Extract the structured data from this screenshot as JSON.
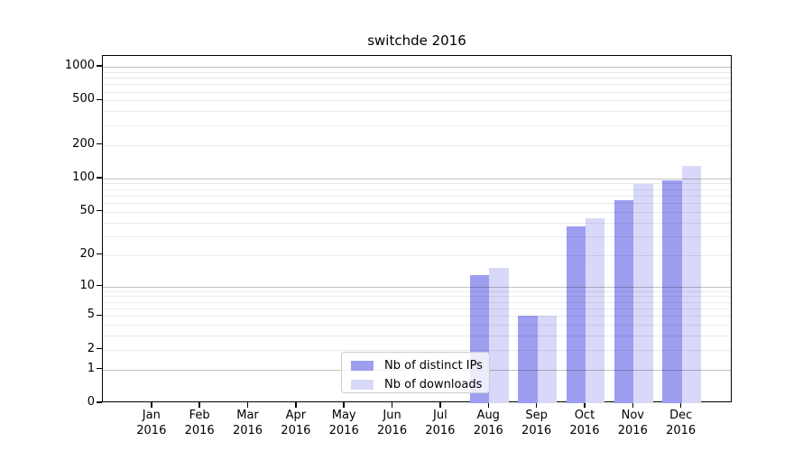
{
  "chart_data": {
    "type": "bar",
    "title": "switchde 2016",
    "categories": [
      "Jan",
      "Feb",
      "Mar",
      "Apr",
      "May",
      "Jun",
      "Jul",
      "Aug",
      "Sep",
      "Oct",
      "Nov",
      "Dec"
    ],
    "category_year_line": "2016",
    "series": [
      {
        "name": "Nb of distinct IPs",
        "color": "#9e9ef0",
        "values": [
          0,
          0,
          0,
          0,
          0,
          0,
          0,
          13,
          5,
          37,
          64,
          96
        ]
      },
      {
        "name": "Nb of downloads",
        "color": "#d8d8f8",
        "values": [
          0,
          0,
          0,
          0,
          0,
          0,
          0,
          15,
          5,
          44,
          89,
          130
        ]
      }
    ],
    "xlabel": "",
    "ylabel": "",
    "yscale": "log10(1+v)",
    "ylim": [
      0,
      1227
    ],
    "y_ticks": [
      0,
      1,
      2,
      5,
      10,
      20,
      50,
      100,
      200,
      500,
      1000
    ],
    "grid": {
      "major_lines": [
        1,
        10,
        100,
        1000
      ],
      "minor_multipliers": [
        2,
        3,
        4,
        5,
        6,
        7,
        8,
        9
      ],
      "minor_decades": [
        1,
        10,
        100
      ],
      "on": true
    },
    "legend_position": "lower center-left",
    "colors": {
      "spine": "#000000",
      "major_grid": "#c4c4c4",
      "minor_grid": "#ececec",
      "background": "#ffffff"
    }
  }
}
